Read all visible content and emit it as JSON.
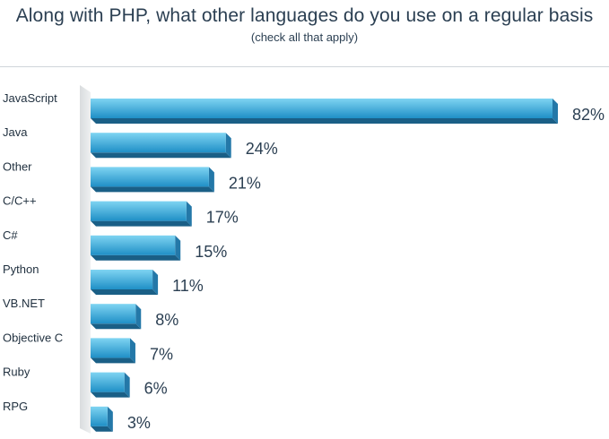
{
  "chart_data": {
    "type": "bar",
    "orientation": "horizontal",
    "title": "Along with PHP, what other languages do you use on a regular basis",
    "subtitle": "(check all that apply)",
    "categories": [
      "JavaScript",
      "Java",
      "Other",
      "C/C++",
      "C#",
      "Python",
      "VB.NET",
      "Objective C",
      "Ruby",
      "RPG"
    ],
    "values": [
      82,
      24,
      21,
      17,
      15,
      11,
      8,
      7,
      6,
      3
    ],
    "value_labels": [
      "82%",
      "24%",
      "21%",
      "17%",
      "15%",
      "11%",
      "8%",
      "7%",
      "6%",
      "3%"
    ],
    "xlim": [
      0,
      82
    ],
    "grid": false,
    "legend": "none",
    "colors": {
      "bar_top": "#7fd4f2",
      "bar_bottom": "#1f8fc6",
      "bar_shadow": "#1a5f86",
      "backdrop": "#e3e6e8"
    }
  }
}
